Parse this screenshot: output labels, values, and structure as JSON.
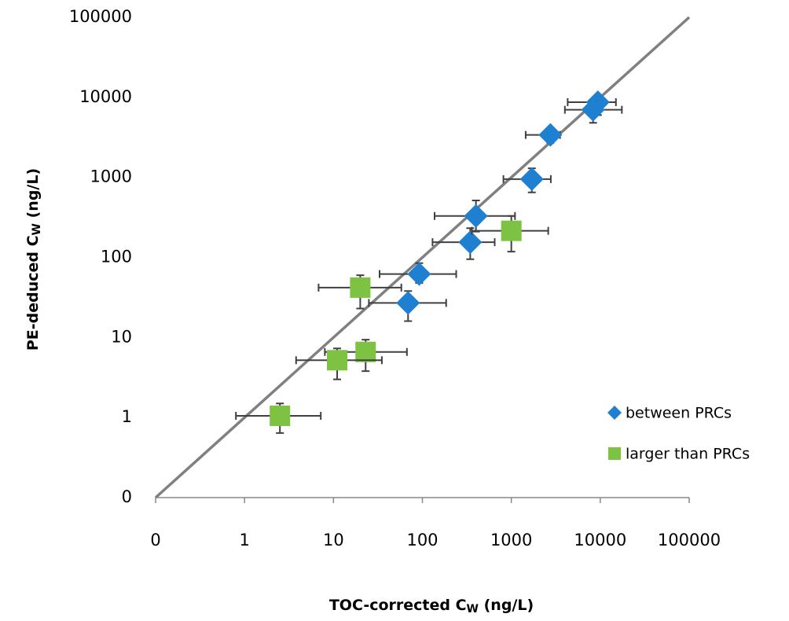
{
  "chart_data": {
    "type": "scatter",
    "x_label": {
      "main": "TOC-corrected C",
      "sub": "W",
      "unit": " (ng/L)"
    },
    "y_label": {
      "main": "PE-deduced C",
      "sub": "W",
      "unit": " (ng/L)"
    },
    "xscale": "log",
    "yscale": "log",
    "xlim": [
      0.1,
      100000
    ],
    "ylim": [
      0.1,
      100000
    ],
    "xticks": [
      {
        "value": 0.1,
        "label": "0"
      },
      1,
      10,
      100,
      1000,
      10000,
      100000
    ],
    "yticks": [
      {
        "value": 0.1,
        "label": "0"
      },
      1,
      10,
      100,
      1000,
      10000,
      100000
    ],
    "grid": false,
    "reference_line": {
      "color": "#808080",
      "x": [
        0.1,
        100000
      ],
      "y": [
        0.1,
        100000
      ]
    },
    "legend": "lower right",
    "error_color": "#404040",
    "series": [
      {
        "name": "between PRCs",
        "color": "#1f7fd0",
        "marker": "diamond",
        "x": [
          9400,
          8300,
          2750,
          1700,
          400,
          345,
          92,
          69
        ],
        "values": [
          8700,
          7000,
          3390,
          950,
          330,
          155,
          62,
          27
        ],
        "x_lo": [
          4300,
          4000,
          1450,
          815,
          137,
          130,
          33,
          25
        ],
        "x_hi": [
          15000,
          17500,
          3530,
          2780,
          1100,
          650,
          240,
          185
        ],
        "y_lo": [
          6000,
          4800,
          2700,
          650,
          210,
          95,
          48,
          16
        ],
        "y_hi": [
          10500,
          8800,
          4000,
          1300,
          515,
          232,
          85,
          38
        ]
      },
      {
        "name": "larger than PRCs",
        "color": "#7dc242",
        "marker": "square",
        "x": [
          1000,
          20,
          23,
          11,
          2.5
        ],
        "values": [
          215,
          42,
          6.6,
          5.2,
          1.05
        ],
        "x_lo": [
          360,
          6.8,
          8,
          3.8,
          0.8
        ],
        "x_hi": [
          2600,
          58,
          67,
          35,
          7.2
        ],
        "y_lo": [
          118,
          23,
          3.8,
          3,
          0.64
        ],
        "y_hi": [
          330,
          60,
          9.4,
          7.3,
          1.5
        ]
      }
    ]
  }
}
